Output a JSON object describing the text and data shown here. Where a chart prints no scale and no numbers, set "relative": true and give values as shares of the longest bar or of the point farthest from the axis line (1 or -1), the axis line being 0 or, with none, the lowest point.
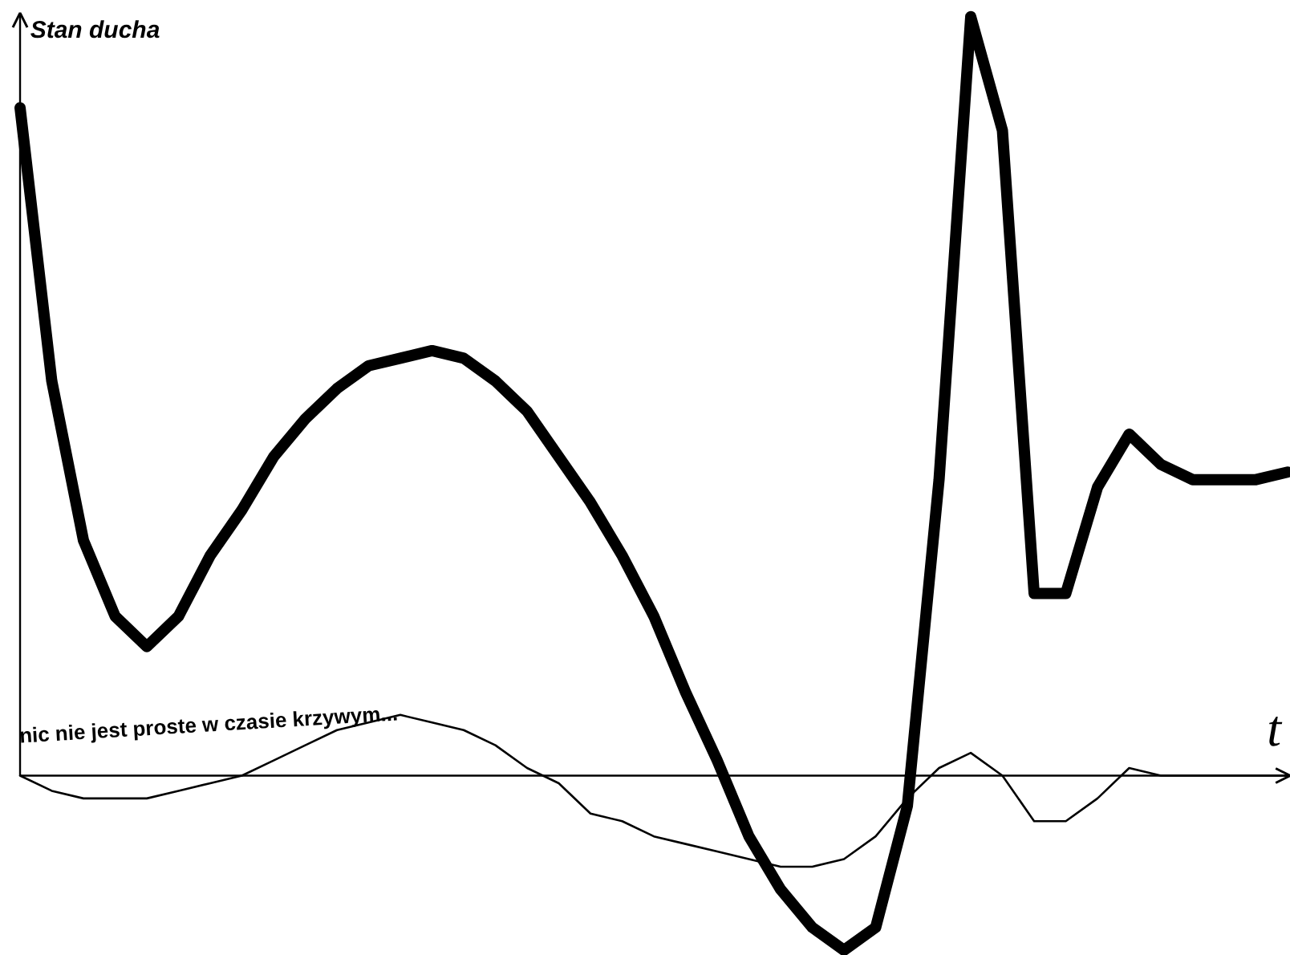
{
  "chart_data": {
    "type": "line",
    "relative": true,
    "xlabel": "t",
    "ylabel": "Stan ducha",
    "annotations": [
      "nic nie jest proste  w czasie krzywym..."
    ],
    "categories": [
      null,
      null,
      null,
      null,
      null,
      null,
      null,
      null,
      null,
      null,
      null,
      null,
      null,
      null,
      null,
      null,
      null,
      null,
      null,
      null,
      null,
      null,
      null,
      null,
      null,
      null,
      null,
      null,
      null,
      null,
      null,
      null,
      null,
      null,
      null,
      null,
      null,
      null,
      null,
      null,
      null
    ],
    "series": [
      {
        "color": "#000000",
        "values": [
          0.88,
          0.52,
          0.31,
          0.21,
          0.17,
          0.21,
          0.29,
          0.35,
          0.42,
          0.47,
          0.51,
          0.54,
          0.55,
          0.56,
          0.55,
          0.52,
          0.48,
          0.42,
          0.36,
          0.29,
          0.21,
          0.11,
          0.02,
          -0.08,
          -0.15,
          -0.2,
          -0.23,
          -0.2,
          -0.04,
          0.39,
          1.0,
          0.85,
          0.24,
          0.24,
          0.38,
          0.45,
          0.41,
          0.39,
          0.39,
          0.39,
          0.4
        ]
      },
      {
        "color": "#000000",
        "values": [
          0,
          -0.02,
          -0.03,
          -0.03,
          -0.03,
          -0.02,
          -0.01,
          0.0,
          0.02,
          0.04,
          0.06,
          0.07,
          0.08,
          0.07,
          0.06,
          0.04,
          0.01,
          -0.01,
          -0.05,
          -0.06,
          -0.08,
          -0.09,
          -0.1,
          -0.11,
          -0.12,
          -0.12,
          -0.11,
          -0.08,
          -0.03,
          0.01,
          0.03,
          0.0,
          -0.06,
          -0.06,
          -0.03,
          0.01,
          0.0,
          0,
          0,
          0,
          0
        ]
      }
    ]
  }
}
